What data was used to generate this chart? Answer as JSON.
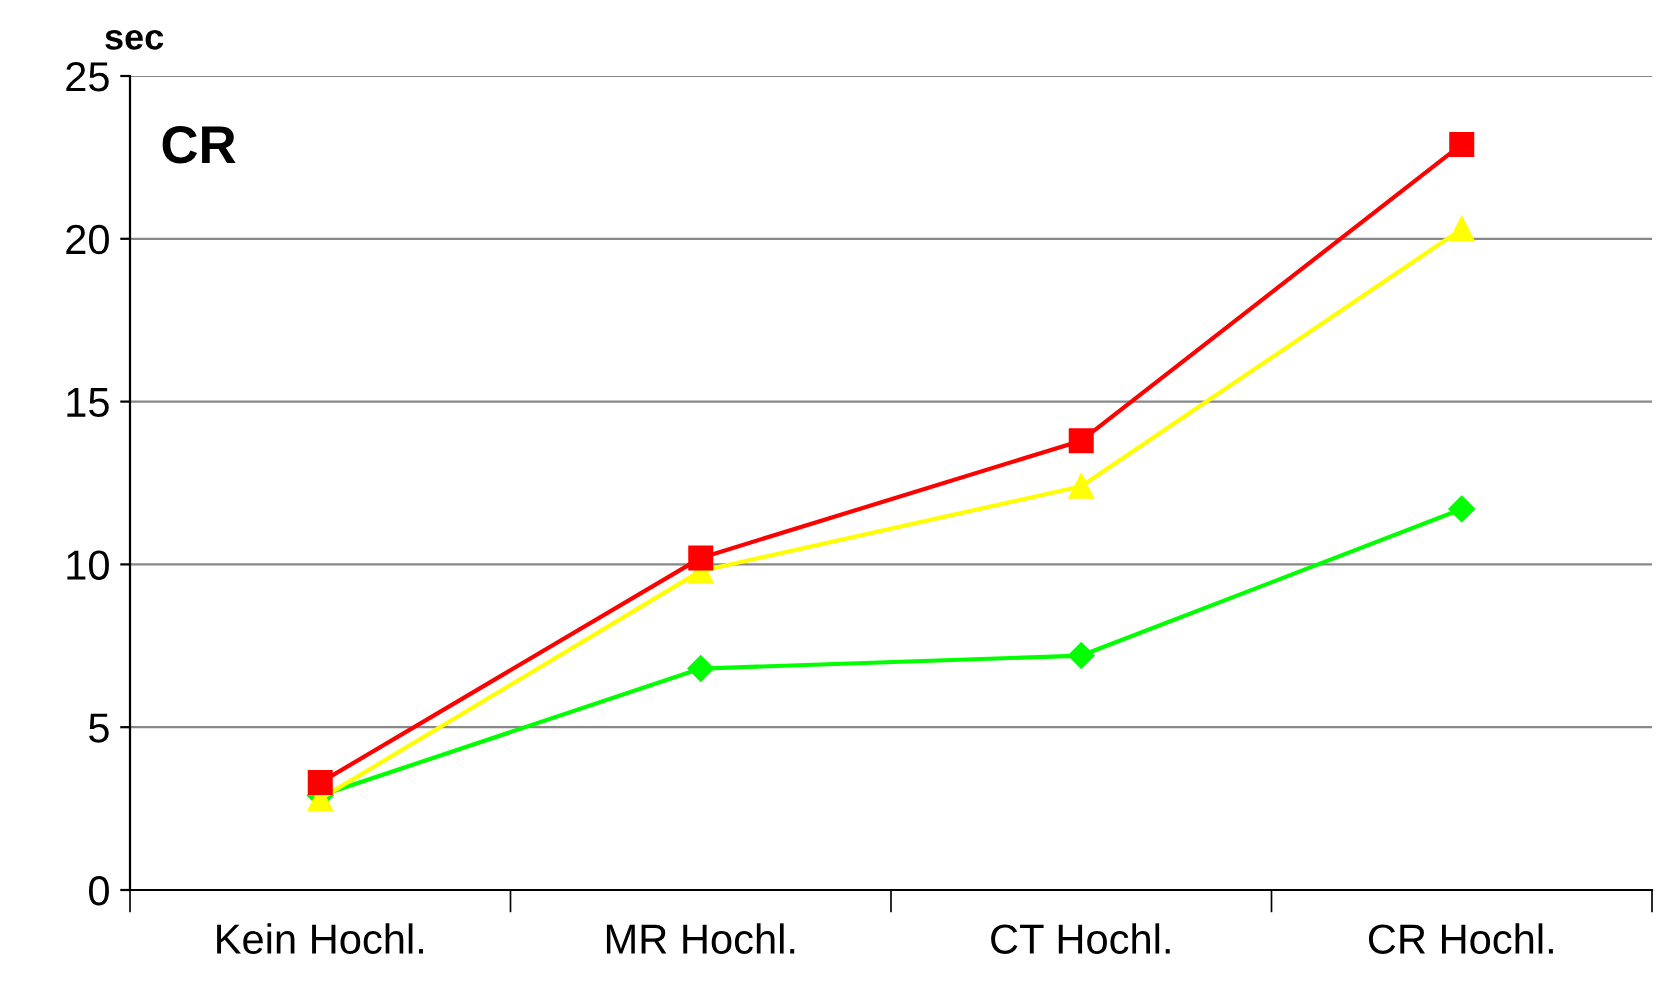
{
  "chart_data": {
    "type": "line",
    "ylabel": "sec",
    "annotations": [
      "CR"
    ],
    "categories": [
      "Kein Hochl.",
      "MR Hochl.",
      "CT Hochl.",
      "CR Hochl."
    ],
    "series": [
      {
        "color": "#ff0000",
        "marker": "square",
        "values": [
          3.3,
          10.2,
          13.8,
          22.9
        ]
      },
      {
        "color": "#ffff00",
        "marker": "triangle",
        "values": [
          2.8,
          9.8,
          12.4,
          20.3
        ]
      },
      {
        "color": "#00ff00",
        "marker": "diamond",
        "values": [
          2.9,
          6.8,
          7.2,
          11.7
        ]
      }
    ],
    "ylim": [
      0,
      25
    ],
    "yticks": [
      0,
      5,
      10,
      15,
      20,
      25
    ],
    "grid": "y",
    "line_style": "solid"
  }
}
